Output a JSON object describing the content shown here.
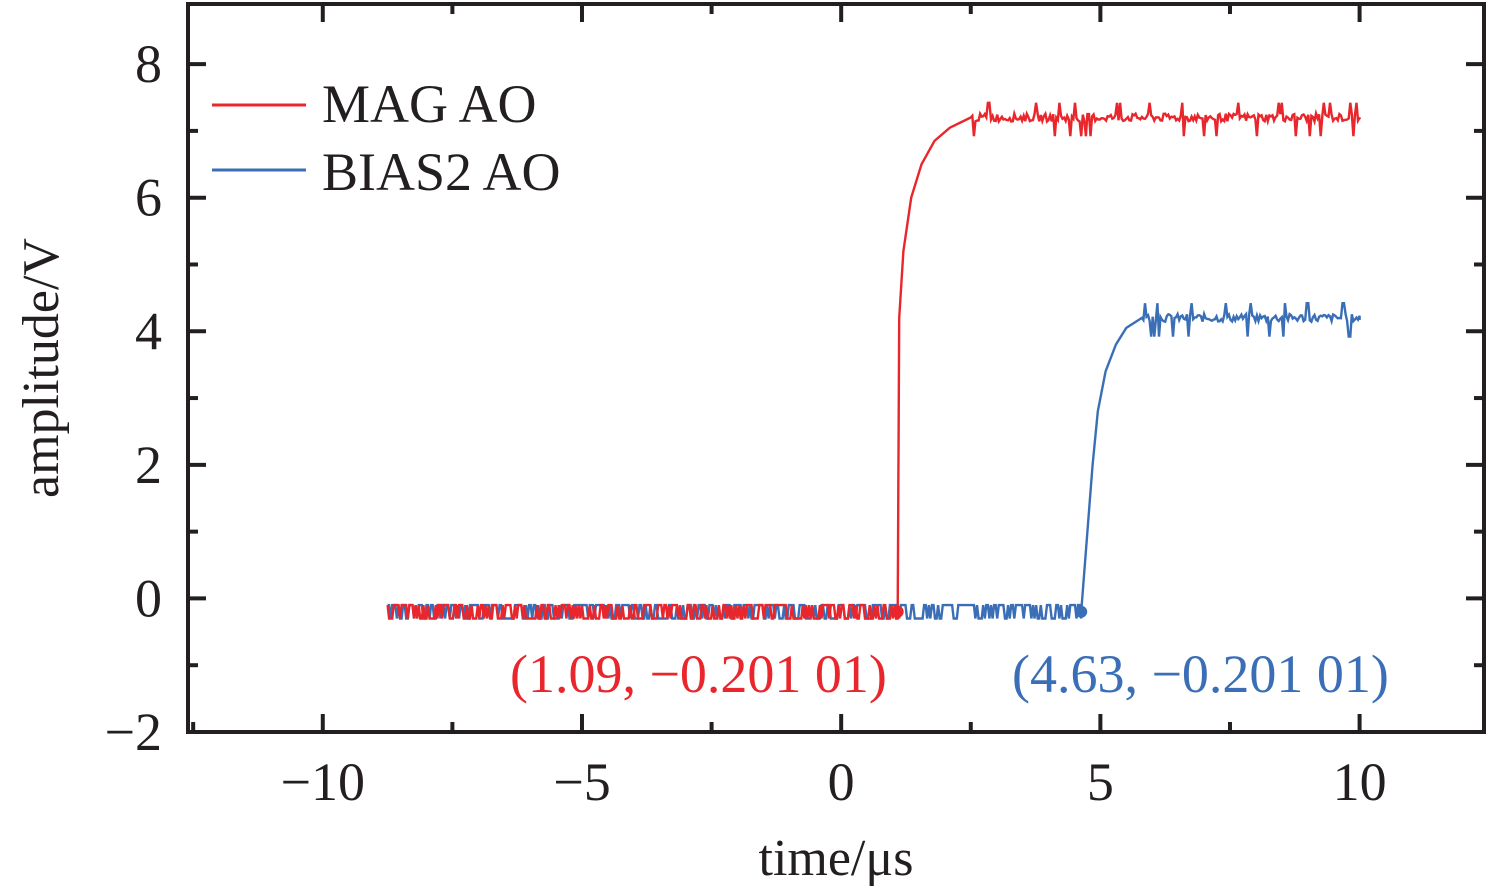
{
  "chart_data": {
    "type": "line",
    "title": "",
    "xlabel": "time/μs",
    "ylabel": "amplitude/V",
    "xlim": [
      -12.6,
      12.4
    ],
    "ylim": [
      -2,
      8.9
    ],
    "x_ticks": [
      -10,
      -5,
      0,
      5,
      10
    ],
    "x_tick_labels": [
      "−10",
      "−5",
      "0",
      "5",
      "10"
    ],
    "y_ticks": [
      -2,
      0,
      2,
      4,
      6,
      8
    ],
    "y_tick_labels": [
      "−2",
      "0",
      "2",
      "4",
      "6",
      "8"
    ],
    "legend_position": "top-left",
    "grid": false,
    "series": [
      {
        "name": "MAG AO",
        "color": "#e8262b",
        "baseline": -0.2,
        "noise_levels": [
          -0.1,
          -0.3
        ],
        "x_start": -8.75,
        "x_end": 10,
        "step_time": 1.09,
        "plateau": 7.2,
        "rise_points": [
          [
            1.09,
            -0.2
          ],
          [
            1.12,
            4.2
          ],
          [
            1.2,
            5.2
          ],
          [
            1.35,
            6.0
          ],
          [
            1.55,
            6.5
          ],
          [
            1.8,
            6.85
          ],
          [
            2.1,
            7.05
          ],
          [
            2.5,
            7.2
          ]
        ]
      },
      {
        "name": "BIAS2 AO",
        "color": "#3a6fb7",
        "baseline": -0.2,
        "noise_levels": [
          -0.1,
          -0.3
        ],
        "x_start": -8.75,
        "x_end": 10,
        "step_time": 4.63,
        "plateau": 4.2,
        "rise_points": [
          [
            4.63,
            -0.2
          ],
          [
            4.75,
            1.0
          ],
          [
            4.85,
            2.0
          ],
          [
            4.95,
            2.8
          ],
          [
            5.1,
            3.4
          ],
          [
            5.3,
            3.8
          ],
          [
            5.5,
            4.05
          ],
          [
            5.8,
            4.2
          ]
        ]
      }
    ],
    "annotations": [
      {
        "text": "(1.09, −0.201 01)",
        "x": 1.09,
        "y": -0.20101,
        "color": "#e8262b"
      },
      {
        "text": "(4.63, −0.201 01)",
        "x": 4.63,
        "y": -0.20101,
        "color": "#3a6fb7"
      }
    ]
  }
}
